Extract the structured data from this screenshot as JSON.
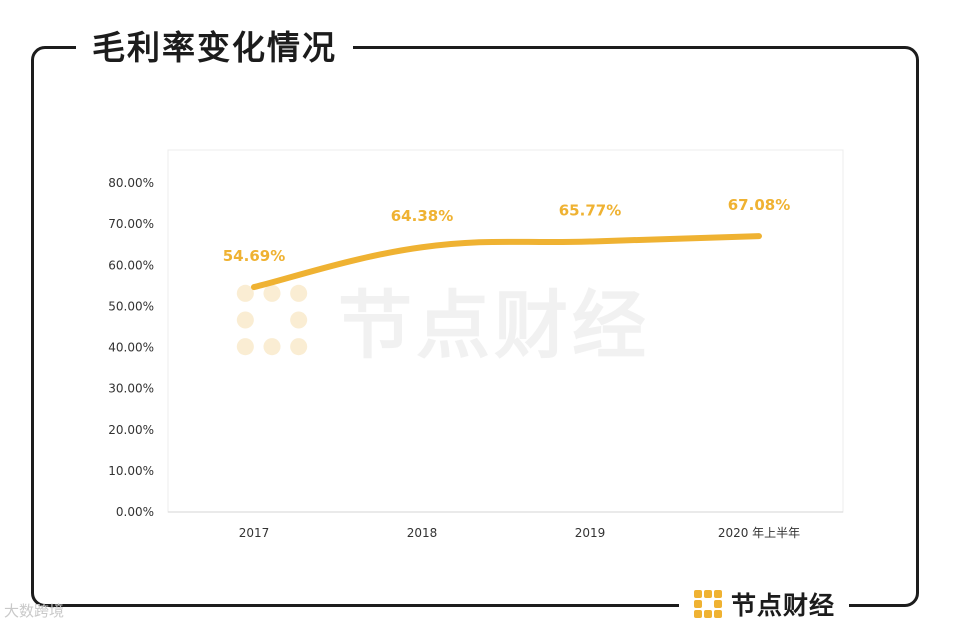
{
  "title": "毛利率变化情况",
  "brand": {
    "name": "节点财经",
    "icon": "brand-grid-icon",
    "color": "#efb232"
  },
  "watermark": {
    "text": "节点财经"
  },
  "source_mark": "大数跨境",
  "chart_data": {
    "type": "line",
    "categories": [
      "2017",
      "2018",
      "2019",
      "2020 年上半年"
    ],
    "series": [
      {
        "values": [
          54.69,
          64.38,
          65.77,
          67.08
        ],
        "labels": [
          "54.69%",
          "64.38%",
          "65.77%",
          "67.08%"
        ],
        "color": "#efb232"
      }
    ],
    "y_ticks": [
      "0.00%",
      "10.00%",
      "20.00%",
      "30.00%",
      "40.00%",
      "50.00%",
      "60.00%",
      "70.00%",
      "80.00%"
    ],
    "ylim": [
      0,
      80
    ],
    "grid": false,
    "smooth": true
  }
}
